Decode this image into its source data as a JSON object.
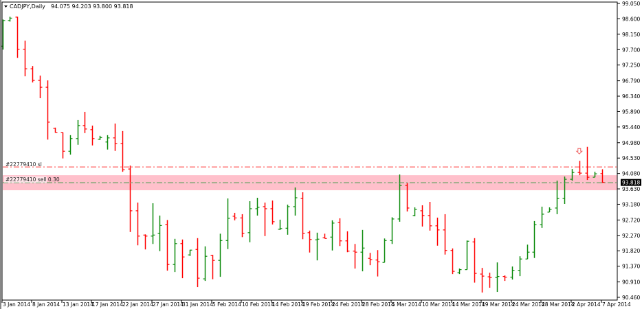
{
  "header": {
    "symbol_timeframe": "CADJPY,Daily",
    "ohlc_readout": "94.075 94.203 93.800 93.818",
    "menu_icon": "triangle-down-icon"
  },
  "orders": {
    "stop_loss_label": "#22779410 sl",
    "stop_loss_price": 94.27,
    "entry_label": "#22779410 sell 0.30",
    "entry_price": 93.81,
    "zone_top": 94.03,
    "zone_bottom": 93.59,
    "sell_arrow_icon": "arrow-down-icon",
    "sell_arrow_date": "3 Apr 2014"
  },
  "current_price": "93.818",
  "colors": {
    "bull": "#0a8a0a",
    "bear": "#ff0000",
    "stop_loss_line": "#ff3b3b",
    "entry_line": "#2a8a2a",
    "zone": "#ffc0cb",
    "price_tag_bg": "#000000",
    "price_tag_text": "#ffffff"
  },
  "chart_data": {
    "type": "bar",
    "bar_style": "ohlc",
    "title": "CADJPY,Daily",
    "ylim": [
      90.46,
      99.05
    ],
    "grid": false,
    "y_tick_labels": [
      "99.050",
      "98.600",
      "98.150",
      "97.700",
      "97.250",
      "96.790",
      "96.340",
      "95.890",
      "95.440",
      "94.980",
      "94.530",
      "94.080",
      "93.630",
      "93.180",
      "92.720",
      "92.270",
      "91.820",
      "91.370",
      "90.910",
      "90.460"
    ],
    "x_tick_labels": [
      "3 Jan 2014",
      "8 Jan 2014",
      "13 Jan 2014",
      "17 Jan 2014",
      "22 Jan 2014",
      "27 Jan 2014",
      "31 Jan 2014",
      "5 Feb 2014",
      "10 Feb 2014",
      "14 Feb 2014",
      "19 Feb 2014",
      "24 Feb 2014",
      "28 Feb 2014",
      "5 Mar 2014",
      "10 Mar 2014",
      "14 Mar 2014",
      "19 Mar 2014",
      "24 Mar 2014",
      "28 Mar 2014",
      "2 Apr 2014",
      "7 Apr 2014"
    ],
    "columns": [
      "date",
      "open",
      "high",
      "low",
      "close"
    ],
    "bars": [
      [
        "3 Jan 2014",
        97.8,
        98.58,
        97.7,
        98.55
      ],
      [
        "5 Jan 2014",
        98.55,
        98.66,
        98.52,
        98.62
      ],
      [
        "6 Jan 2014",
        98.65,
        98.66,
        97.46,
        97.71
      ],
      [
        "7 Jan 2014",
        97.71,
        97.96,
        96.92,
        97.14
      ],
      [
        "8 Jan 2014",
        97.14,
        97.22,
        96.74,
        96.8
      ],
      [
        "9 Jan 2014",
        96.8,
        96.94,
        96.28,
        96.6
      ],
      [
        "10 Jan 2014",
        96.6,
        96.8,
        95.07,
        95.58
      ],
      [
        "12 Jan 2014",
        95.4,
        95.42,
        95.27,
        95.28
      ],
      [
        "13 Jan 2014",
        95.28,
        95.28,
        94.52,
        94.73
      ],
      [
        "14 Jan 2014",
        94.73,
        95.2,
        94.63,
        95.1
      ],
      [
        "15 Jan 2014",
        95.1,
        95.64,
        94.92,
        95.48
      ],
      [
        "16 Jan 2014",
        95.48,
        95.88,
        95.26,
        95.38
      ],
      [
        "17 Jan 2014",
        95.36,
        95.48,
        94.9,
        95.1
      ],
      [
        "19 Jan 2014",
        95.08,
        95.18,
        95.06,
        95.13
      ],
      [
        "20 Jan 2014",
        95.0,
        95.2,
        94.78,
        95.12
      ],
      [
        "21 Jan 2014",
        95.12,
        95.54,
        94.74,
        94.95
      ],
      [
        "22 Jan 2014",
        94.95,
        95.32,
        94.13,
        94.19
      ],
      [
        "23 Jan 2014",
        94.21,
        94.31,
        92.37,
        92.99
      ],
      [
        "24 Jan 2014",
        92.99,
        93.23,
        91.98,
        92.25
      ],
      [
        "26 Jan 2014",
        92.28,
        92.3,
        91.86,
        92.25
      ],
      [
        "27 Jan 2014",
        92.25,
        93.21,
        92.02,
        92.28
      ],
      [
        "28 Jan 2014",
        92.33,
        92.85,
        91.81,
        92.56
      ],
      [
        "29 Jan 2014",
        92.59,
        92.72,
        91.24,
        91.42
      ],
      [
        "30 Jan 2014",
        91.42,
        92.17,
        91.2,
        92.03
      ],
      [
        "31 Jan 2014",
        92.03,
        92.15,
        91.02,
        91.64
      ],
      [
        "2 Feb 2014",
        91.7,
        91.85,
        91.67,
        91.84
      ],
      [
        "3 Feb 2014",
        91.86,
        92.19,
        90.76,
        91.02
      ],
      [
        "4 Feb 2014",
        91.0,
        91.95,
        90.94,
        91.66
      ],
      [
        "5 Feb 2014",
        91.68,
        91.7,
        90.99,
        91.54
      ],
      [
        "6 Feb 2014",
        91.54,
        92.32,
        91.06,
        92.12
      ],
      [
        "7 Feb 2014",
        92.12,
        93.35,
        91.87,
        92.77
      ],
      [
        "9 Feb 2014",
        92.83,
        92.93,
        92.71,
        92.78
      ],
      [
        "10 Feb 2014",
        92.78,
        92.89,
        92.22,
        92.33
      ],
      [
        "11 Feb 2014",
        92.35,
        93.27,
        92.07,
        93.05
      ],
      [
        "12 Feb 2014",
        93.05,
        93.37,
        92.85,
        93.09
      ],
      [
        "13 Feb 2014",
        93.11,
        93.23,
        92.25,
        93.05
      ],
      [
        "14 Feb 2014",
        93.05,
        93.29,
        92.59,
        92.67
      ],
      [
        "16 Feb 2014",
        92.45,
        92.73,
        92.43,
        92.47
      ],
      [
        "17 Feb 2014",
        92.48,
        93.17,
        92.29,
        93.11
      ],
      [
        "18 Feb 2014",
        93.11,
        93.67,
        92.85,
        93.37
      ],
      [
        "19 Feb 2014",
        93.35,
        93.53,
        92.16,
        92.33
      ],
      [
        "20 Feb 2014",
        92.35,
        92.41,
        91.77,
        92.15
      ],
      [
        "21 Feb 2014",
        92.14,
        92.35,
        91.54,
        92.16
      ],
      [
        "23 Feb 2014",
        92.2,
        92.32,
        92.18,
        92.18
      ],
      [
        "24 Feb 2014",
        92.22,
        92.71,
        91.83,
        92.63
      ],
      [
        "25 Feb 2014",
        92.65,
        92.77,
        91.96,
        92.11
      ],
      [
        "26 Feb 2014",
        92.11,
        92.39,
        91.78,
        91.81
      ],
      [
        "27 Feb 2014",
        91.81,
        92.02,
        91.3,
        91.78
      ],
      [
        "28 Feb 2014",
        91.78,
        92.43,
        91.22,
        91.9
      ],
      [
        "2 Mar 2014",
        91.6,
        91.76,
        91.4,
        91.56
      ],
      [
        "3 Mar 2014",
        91.55,
        91.84,
        91.07,
        91.5
      ],
      [
        "4 Mar 2014",
        91.48,
        92.18,
        91.48,
        92.12
      ],
      [
        "5 Mar 2014",
        92.12,
        92.8,
        92.02,
        92.75
      ],
      [
        "6 Mar 2014",
        92.75,
        94.05,
        92.67,
        93.73
      ],
      [
        "7 Mar 2014",
        93.73,
        93.81,
        92.97,
        93.07
      ],
      [
        "9 Mar 2014",
        92.85,
        93.09,
        92.83,
        93.03
      ],
      [
        "10 Mar 2014",
        92.99,
        93.15,
        92.53,
        92.85
      ],
      [
        "11 Mar 2014",
        92.85,
        93.25,
        92.41,
        92.55
      ],
      [
        "12 Mar 2014",
        92.55,
        92.79,
        91.97,
        92.43
      ],
      [
        "13 Mar 2014",
        92.43,
        92.89,
        91.71,
        91.83
      ],
      [
        "14 Mar 2014",
        91.83,
        91.89,
        91.14,
        91.22
      ],
      [
        "16 Mar 2014",
        91.18,
        91.3,
        91.14,
        91.27
      ],
      [
        "17 Mar 2014",
        91.27,
        92.12,
        91.27,
        92.1
      ],
      [
        "18 Mar 2014",
        92.08,
        92.19,
        90.89,
        91.16
      ],
      [
        "19 Mar 2014",
        91.14,
        91.32,
        90.6,
        91.08
      ],
      [
        "20 Mar 2014",
        91.06,
        91.18,
        90.74,
        91.04
      ],
      [
        "21 Mar 2014",
        91.04,
        91.48,
        90.62,
        91.07
      ],
      [
        "23 Mar 2014",
        91.07,
        91.1,
        90.94,
        91.05
      ],
      [
        "24 Mar 2014",
        91.05,
        91.36,
        90.98,
        91.25
      ],
      [
        "25 Mar 2014",
        91.25,
        91.66,
        91.08,
        91.58
      ],
      [
        "26 Mar 2014",
        91.58,
        92.0,
        91.58,
        91.78
      ],
      [
        "27 Mar 2014",
        91.78,
        92.69,
        91.61,
        92.58
      ],
      [
        "28 Mar 2014",
        92.58,
        93.11,
        92.49,
        92.89
      ],
      [
        "30 Mar 2014",
        92.95,
        93.09,
        92.95,
        93.03
      ],
      [
        "31 Mar 2014",
        93.07,
        93.87,
        92.89,
        93.35
      ],
      [
        "1 Apr 2014",
        93.35,
        93.99,
        93.19,
        93.91
      ],
      [
        "2 Apr 2014",
        93.91,
        94.21,
        93.87,
        94.11
      ],
      [
        "3 Apr 2014",
        94.11,
        94.45,
        94.03,
        94.09
      ],
      [
        "4 Apr 2014",
        94.09,
        94.86,
        93.89,
        93.97
      ],
      [
        "6 Apr 2014",
        93.97,
        94.13,
        93.97,
        94.07
      ],
      [
        "7 Apr 2014",
        94.075,
        94.203,
        93.8,
        93.818
      ]
    ]
  }
}
